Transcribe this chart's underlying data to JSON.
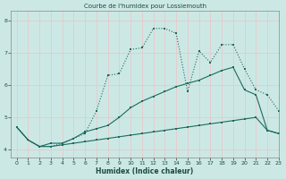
{
  "title": "Courbe de l'humidex pour Lossiemouth",
  "xlabel": "Humidex (Indice chaleur)",
  "background_color": "#cce8e5",
  "grid_color": "#e8c8c8",
  "line_color": "#1a6b5e",
  "xlim": [
    -0.5,
    23
  ],
  "ylim": [
    3.75,
    8.3
  ],
  "yticks": [
    4,
    5,
    6,
    7,
    8
  ],
  "xticks": [
    0,
    1,
    2,
    3,
    4,
    5,
    6,
    7,
    8,
    9,
    10,
    11,
    12,
    13,
    14,
    15,
    16,
    17,
    18,
    19,
    20,
    21,
    22,
    23
  ],
  "line1_x": [
    0,
    1,
    2,
    3,
    4,
    5,
    6,
    7,
    8,
    9,
    10,
    11,
    12,
    13,
    14,
    15,
    16,
    17,
    18,
    19,
    20,
    21,
    22,
    23
  ],
  "line1_y": [
    4.7,
    4.3,
    4.1,
    4.1,
    4.15,
    4.2,
    4.25,
    4.3,
    4.35,
    4.4,
    4.45,
    4.5,
    4.55,
    4.6,
    4.65,
    4.7,
    4.75,
    4.8,
    4.85,
    4.9,
    4.95,
    5.0,
    4.6,
    4.5
  ],
  "line2_x": [
    0,
    1,
    2,
    3,
    4,
    5,
    6,
    7,
    8,
    9,
    10,
    11,
    12,
    13,
    14,
    15,
    16,
    17,
    18,
    19,
    20,
    21,
    22,
    23
  ],
  "line2_y": [
    4.7,
    4.3,
    4.1,
    4.1,
    4.2,
    4.35,
    4.5,
    5.2,
    6.3,
    6.35,
    7.1,
    7.15,
    7.75,
    7.75,
    7.6,
    5.8,
    7.05,
    6.7,
    7.25,
    7.25,
    6.5,
    5.85,
    5.7,
    5.2
  ],
  "line3_x": [
    0,
    1,
    2,
    3,
    4,
    5,
    6,
    7,
    8,
    9,
    10,
    11,
    12,
    13,
    14,
    15,
    16,
    17,
    18,
    19,
    20,
    21,
    22,
    23
  ],
  "line3_y": [
    4.7,
    4.3,
    4.1,
    4.2,
    4.2,
    4.35,
    4.55,
    4.65,
    4.75,
    5.0,
    5.3,
    5.5,
    5.65,
    5.8,
    5.95,
    6.05,
    6.15,
    6.3,
    6.45,
    6.55,
    5.85,
    5.7,
    4.6,
    4.5
  ]
}
